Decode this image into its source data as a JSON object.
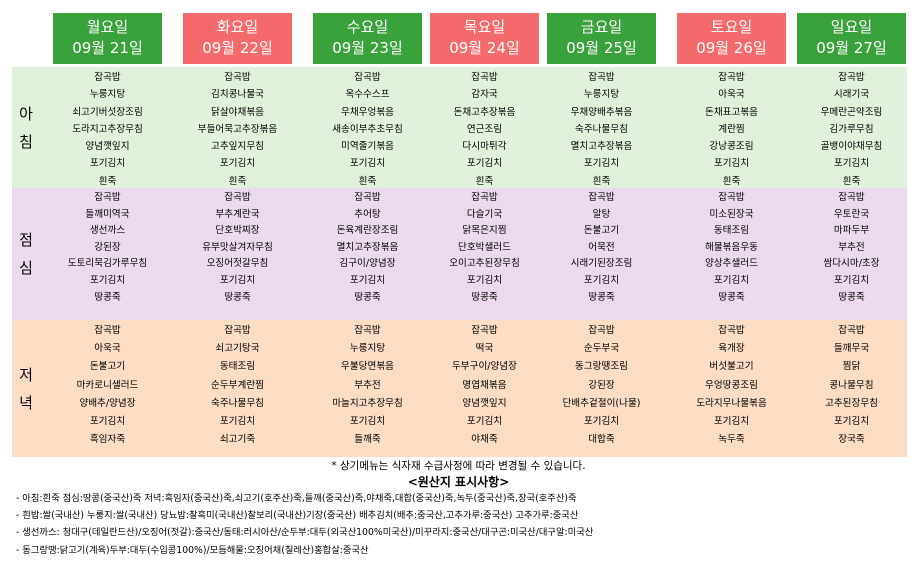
{
  "days": [
    {
      "day": "월요일",
      "date": "09월 21일",
      "color": "#3aa23a"
    },
    {
      "day": "화요일",
      "date": "09월 22일",
      "color": "#f56b6b"
    },
    {
      "day": "수요일",
      "date": "09월 23일",
      "color": "#3aa23a"
    },
    {
      "day": "목요일",
      "date": "09월 24일",
      "color": "#f56b6b"
    },
    {
      "day": "금요일",
      "date": "09월 25일",
      "color": "#3aa23a"
    },
    {
      "day": "토요일",
      "date": "09월 26일",
      "color": "#f56b6b"
    },
    {
      "day": "일요일",
      "date": "09월 27일",
      "color": "#3aa23a"
    }
  ],
  "meals": [
    {
      "label": [
        "아",
        "침"
      ],
      "color": "#e2f1dc",
      "items": [
        [
          "잡곡밥",
          "누룽지탕",
          "쇠고기버섯장조림",
          "도라지고추장무침",
          "양념깻잎지",
          "포기김치",
          "흰죽"
        ],
        [
          "잡곡밥",
          "김치콩나물국",
          "닭살야채볶음",
          "부들어묵고추장볶음",
          "고추잎지무침",
          "포기김치",
          "흰죽"
        ],
        [
          "잡곡밥",
          "옥수수스프",
          "우채우엉볶음",
          "새송이부추초무침",
          "미역줄기볶음",
          "포기김치",
          "흰죽"
        ],
        [
          "잡곡밥",
          "감자국",
          "돈채고추장볶음",
          "연근조림",
          "다시마튀각",
          "포기김치",
          "흰죽"
        ],
        [
          "잡곡밥",
          "누룽지탕",
          "우채양배추볶음",
          "숙주나물무침",
          "멸치고추장볶음",
          "포기김치",
          "흰죽"
        ],
        [
          "잡곡밥",
          "아욱국",
          "돈채표고볶음",
          "계란찜",
          "강낭콩조림",
          "포기김치",
          "흰죽"
        ],
        [
          "잡곡밥",
          "시래기국",
          "우메란곤약조림",
          "김가루무침",
          "골뱅이야채무침",
          "포기김치",
          "흰죽"
        ]
      ]
    },
    {
      "label": [
        "점",
        "심"
      ],
      "color": "#ebdaee",
      "items": [
        [
          "잡곡밥",
          "들깨미역국",
          "생선까스",
          "강된장",
          "도토리묵김가루무침",
          "포기김치",
          "땅콩죽"
        ],
        [
          "잡곡밥",
          "부추계란국",
          "단호박찌장",
          "유부맛살겨자무침",
          "오징어젓갈무침",
          "포기김치",
          "땅콩죽"
        ],
        [
          "잡곡밥",
          "추어탕",
          "돈육계란장조림",
          "멸치고추장볶음",
          "김구이/양념장",
          "포기김치",
          "땅콩죽"
        ],
        [
          "잡곡밥",
          "다슬기국",
          "닭목은지찜",
          "단호박샐러드",
          "오이고추된장무침",
          "포기김치",
          "땅콩죽"
        ],
        [
          "잡곡밥",
          "알탕",
          "돈불고기",
          "어묵전",
          "시래기된장조림",
          "포기김치",
          "땅콩죽"
        ],
        [
          "잡곡밥",
          "미소된장국",
          "동태조림",
          "해물볶음우동",
          "양상추샐러드",
          "포기김치",
          "땅콩죽"
        ],
        [
          "잡곡밥",
          "우토란국",
          "마파두부",
          "부추전",
          "쌈다시마/초장",
          "포기김치",
          "땅콩죽"
        ]
      ]
    },
    {
      "label": [
        "저",
        "녁"
      ],
      "color": "#fbdcc4",
      "items": [
        [
          "잡곡밥",
          "아욱국",
          "돈불고기",
          "마카로니샐러드",
          "양배추/양념장",
          "포기김치",
          "흑임자죽"
        ],
        [
          "잡곡밥",
          "쇠고기탕국",
          "동태조림",
          "순두부계란찜",
          "숙주나물무침",
          "포기김치",
          "쇠고기죽"
        ],
        [
          "잡곡밥",
          "누룽지탕",
          "우불당면볶음",
          "부추전",
          "마늘지고추장무침",
          "포기김치",
          "들깨죽"
        ],
        [
          "잡곡밥",
          "떡국",
          "두부구이/양념장",
          "명엽채볶음",
          "양념깻잎지",
          "포기김치",
          "야채죽"
        ],
        [
          "잡곡밥",
          "순두부국",
          "동그랑땡조림",
          "강된장",
          "단배추겉절이(나물)",
          "포기김치",
          "대합죽"
        ],
        [
          "잡곡밥",
          "육개장",
          "버섯불고기",
          "우엉땅콩조림",
          "도라지무나물볶음",
          "포기김치",
          "녹두죽"
        ],
        [
          "잡곡밥",
          "들깨무국",
          "찜닭",
          "콩나물무침",
          "고추된장무침",
          "포기김치",
          "장국죽"
        ]
      ]
    }
  ],
  "notice": "* 상기메뉴는 식자재 수급사정에 따라 변경될 수 있습니다.",
  "origin": {
    "title": "<원산지 표시사항>",
    "lines": [
      "- 아침:흰죽 점심:땅콩(중국산)죽 저녁:흑임자(중국산)죽,쇠고기(호주산)죽,들깨(중국산)죽,야채죽,대합(중국산)죽,녹두(중국산)죽,장국(호주산)죽",
      "- 흰밥:쌀(국내산) 누룽지:쌀(국내산) 당뇨밥:찰흑미(국내산)찰보리(국내산)기장(중국산) 배추김치(배추:중국산,고추가루:중국산) 고추가루:중국산",
      "- 생선까스: 청대구(데일란드산)/오징어(젓갈):중국산/동태:러시아산/순두부:대두(외국산100%미국산)/미꾸라지:중국산/대구곤:미국산/대구알:미국산",
      "- 동그랑땡:닭고기(계육)두부:대두(수입콩100%)/모듬해물:오징어채(칠레산)홍합살:중국산"
    ]
  }
}
